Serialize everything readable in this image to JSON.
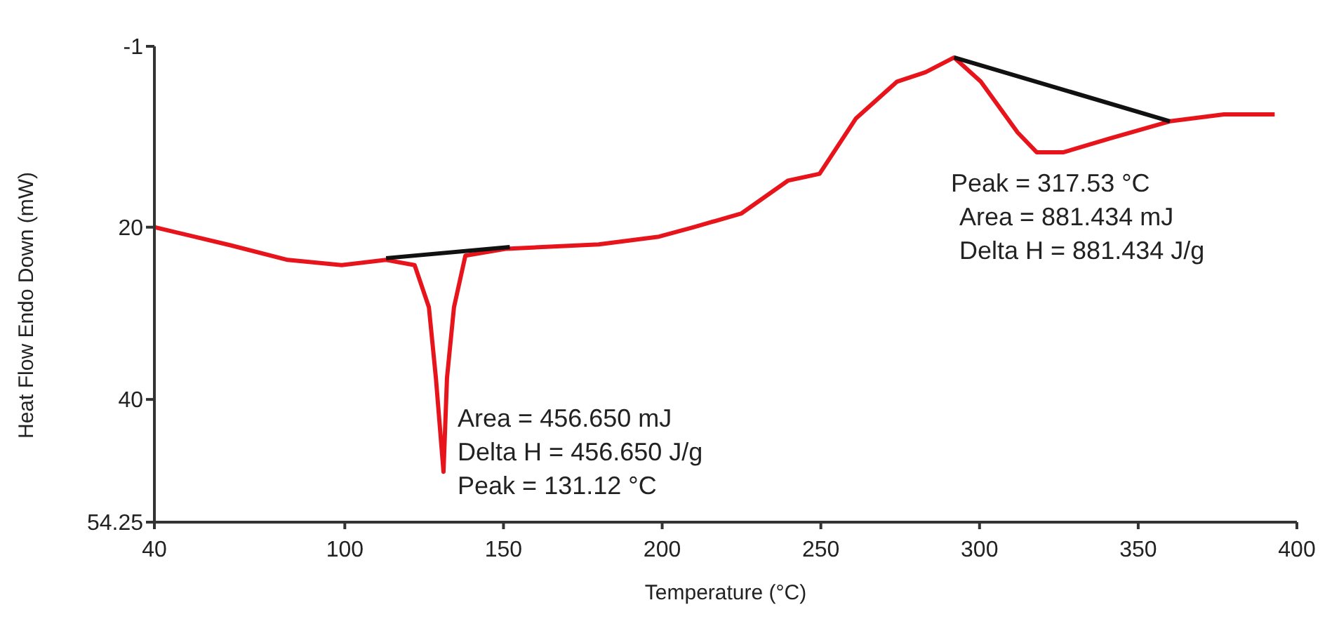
{
  "chart_data": {
    "type": "line",
    "xlabel": "Temperature (°C)",
    "ylabel": "Heat Flow Endo Down (mW)",
    "xlim": [
      40,
      400
    ],
    "xticks": [
      40,
      100,
      150,
      200,
      250,
      300,
      350,
      400
    ],
    "ylim": [
      54.25,
      -1
    ],
    "yticks": [
      -1,
      20,
      40,
      54.25
    ],
    "grid": false,
    "marker": "none",
    "line_style": "solid",
    "series": [
      {
        "color": "#e8141c",
        "x": [
          40,
          64,
          82,
          99,
          113,
          122,
          126.5,
          128.7,
          131.1,
          132.2,
          134.4,
          138,
          151,
          180,
          199,
          210,
          225,
          239.6,
          249.6,
          261,
          274,
          283,
          292,
          300.4,
          312,
          318,
          326.5,
          341,
          360,
          377,
          393
        ],
        "values": [
          20,
          22.1,
          23.8,
          24.4,
          23.8,
          24.4,
          29.3,
          37.5,
          48.4,
          37.5,
          29.3,
          23.3,
          22.5,
          22,
          21.1,
          20,
          18.4,
          14.6,
          13.8,
          7.4,
          3.1,
          2,
          0.3,
          3.1,
          9,
          11.3,
          11.3,
          9.7,
          7.7,
          6.9,
          6.9
        ]
      },
      {
        "color": "#111111",
        "x": [
          113,
          152
        ],
        "values": [
          23.6,
          22.3
        ]
      },
      {
        "color": "#111111",
        "x": [
          292,
          360
        ],
        "values": [
          0.3,
          7.7
        ]
      }
    ],
    "annotations": [
      {
        "text": "Area = 456.650 mJ\nDelta H = 456.650 J/g\nPeak = 131.12 °C",
        "x": 131.12,
        "y": 48.4
      },
      {
        "text": "Peak = 317.53 °C\nArea = 881.434 mJ\nDelta H = 881.434 J/g",
        "x": 317.53,
        "y": 11.3
      }
    ]
  }
}
